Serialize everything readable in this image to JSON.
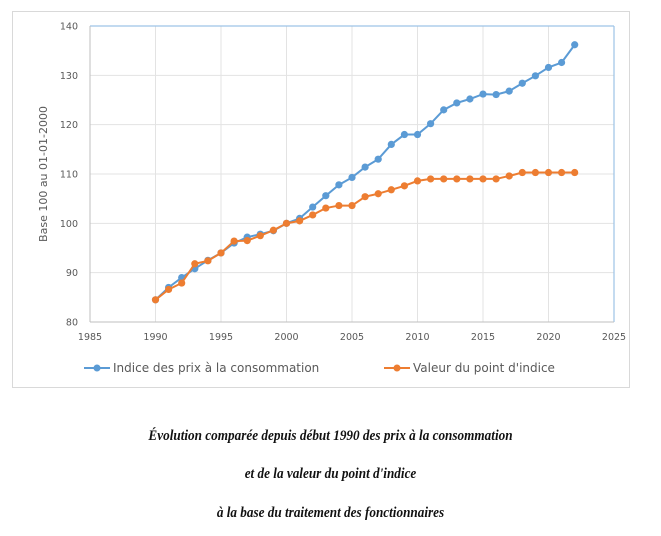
{
  "chart_data": {
    "type": "line",
    "title": "",
    "xlabel": "",
    "ylabel": "Base 100 au 01-01-2000",
    "xlim": [
      1985,
      2025
    ],
    "ylim": [
      80,
      140
    ],
    "x_ticks": [
      "1985",
      "1990",
      "1995",
      "2000",
      "2005",
      "2010",
      "2015",
      "2020",
      "2025"
    ],
    "y_ticks": [
      "80",
      "90",
      "100",
      "110",
      "120",
      "130",
      "140"
    ],
    "grid": true,
    "legend_position": "bottom",
    "x": [
      1990,
      1991,
      1992,
      1993,
      1994,
      1995,
      1996,
      1997,
      1998,
      1999,
      2000,
      2001,
      2002,
      2003,
      2004,
      2005,
      2006,
      2007,
      2008,
      2009,
      2010,
      2011,
      2012,
      2013,
      2014,
      2015,
      2016,
      2017,
      2018,
      2019,
      2020,
      2021,
      2022
    ],
    "series": [
      {
        "name": "Indice des prix à la consommation",
        "color": "#5b9bd5",
        "values": [
          84.5,
          87,
          89,
          90.8,
          92.5,
          94,
          96,
          97.2,
          97.8,
          98.5,
          100,
          101,
          103.3,
          105.6,
          107.8,
          109.3,
          111.4,
          113,
          116,
          118,
          118,
          120.2,
          123,
          124.4,
          125.2,
          126.2,
          126.1,
          126.8,
          128.4,
          129.9,
          131.6,
          132.6,
          136.2
        ]
      },
      {
        "name": "Valeur du point d'indice",
        "color": "#ed7d31",
        "values": [
          84.5,
          86.6,
          87.9,
          91.8,
          92.4,
          94,
          96.4,
          96.5,
          97.5,
          98.6,
          100,
          100.5,
          101.7,
          103.1,
          103.6,
          103.6,
          105.4,
          106,
          106.8,
          107.6,
          108.6,
          109,
          109,
          109,
          109,
          109,
          109,
          109.6,
          110.3,
          110.3,
          110.3,
          110.3,
          110.3
        ]
      }
    ]
  },
  "caption": {
    "line1": "Évolution comparée depuis début 1990 des prix à la consommation",
    "line2": "et de la valeur du point d'indice",
    "line3": "à la base du traitement des fonctionnaires"
  }
}
